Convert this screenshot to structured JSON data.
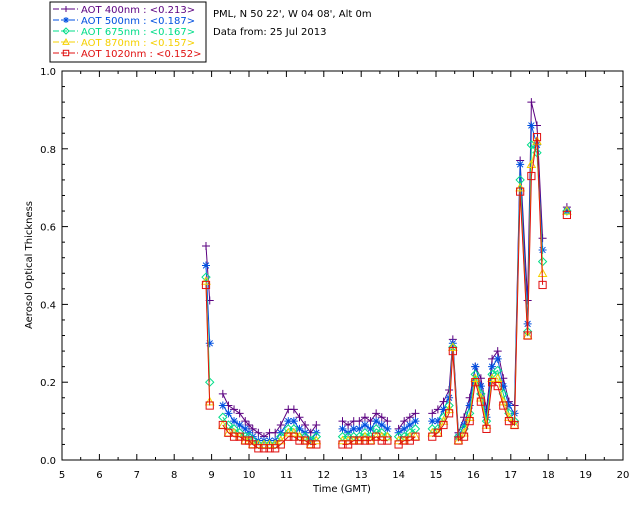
{
  "header": {
    "station": "PML, N 50 22', W 04 08', Alt 0m",
    "date_line": "Data from: 25 Jul 2013"
  },
  "chart_data": {
    "type": "line",
    "xlabel": "Time (GMT)",
    "ylabel": "Aerosol Optical Thickness",
    "xlim": [
      5,
      20
    ],
    "ylim": [
      0,
      1.0
    ],
    "x_ticks": [
      5,
      6,
      7,
      8,
      9,
      10,
      11,
      12,
      13,
      14,
      15,
      16,
      17,
      18,
      19,
      20
    ],
    "y_ticks": [
      "0.0",
      "0.2",
      "0.4",
      "0.6",
      "0.8",
      "1.0"
    ],
    "legend_placement": "top-left",
    "series": [
      {
        "name": "AOT  400nm : <0.213>",
        "label_prefix": "AOT  400nm : ",
        "label_value": "<0.213>",
        "color": "#5a0080",
        "marker": "plus",
        "values": [
          0.55,
          0.41,
          null,
          0.17,
          0.14,
          0.13,
          0.12,
          0.1,
          0.09,
          0.08,
          0.07,
          0.06,
          0.07,
          0.07,
          0.09,
          0.13,
          0.13,
          0.11,
          0.09,
          0.07,
          0.09,
          null,
          0.1,
          0.09,
          0.1,
          0.1,
          0.11,
          0.1,
          0.12,
          0.11,
          0.1,
          null,
          0.08,
          0.1,
          0.11,
          0.12,
          null,
          0.12,
          0.13,
          0.15,
          0.18,
          0.31,
          0.07,
          0.11,
          0.16,
          0.24,
          0.21,
          0.13,
          0.26,
          0.28,
          0.21,
          0.15,
          0.14,
          0.77,
          0.41,
          0.92,
          0.86,
          0.57,
          null,
          0.65
        ]
      },
      {
        "name": "AOT  500nm : <0.187>",
        "label_prefix": "AOT  500nm : ",
        "label_value": "<0.187>",
        "color": "#0050e0",
        "marker": "star",
        "values": [
          0.5,
          0.3,
          null,
          0.14,
          0.12,
          0.1,
          0.09,
          0.08,
          0.07,
          0.06,
          0.05,
          0.05,
          0.05,
          0.05,
          0.07,
          0.1,
          0.1,
          0.08,
          0.07,
          0.05,
          0.07,
          null,
          0.08,
          0.07,
          0.08,
          0.08,
          0.09,
          0.08,
          0.1,
          0.09,
          0.08,
          null,
          0.07,
          0.08,
          0.09,
          0.1,
          null,
          0.1,
          0.1,
          0.13,
          0.16,
          0.3,
          0.06,
          0.09,
          0.14,
          0.24,
          0.19,
          0.11,
          0.24,
          0.26,
          0.19,
          0.14,
          0.12,
          0.76,
          0.35,
          0.86,
          0.81,
          0.54,
          null,
          0.64
        ]
      },
      {
        "name": "AOT  675nm : <0.167>",
        "label_prefix": "AOT  675nm : ",
        "label_value": "<0.167>",
        "color": "#00dd88",
        "marker": "diamond",
        "values": [
          0.47,
          0.2,
          null,
          0.11,
          0.09,
          0.08,
          0.07,
          0.06,
          0.06,
          0.05,
          0.04,
          0.04,
          0.04,
          0.04,
          0.06,
          0.08,
          0.08,
          0.06,
          0.06,
          0.05,
          0.06,
          null,
          0.06,
          0.06,
          0.06,
          0.06,
          0.07,
          0.06,
          0.08,
          0.07,
          0.06,
          null,
          0.06,
          0.06,
          0.07,
          0.08,
          null,
          0.08,
          0.08,
          0.11,
          0.14,
          0.29,
          0.06,
          0.08,
          0.12,
          0.22,
          0.17,
          0.1,
          0.22,
          0.23,
          0.17,
          0.12,
          0.1,
          0.72,
          0.33,
          0.81,
          0.79,
          0.51,
          null,
          0.64
        ]
      },
      {
        "name": "AOT  870nm : <0.157>",
        "label_prefix": "AOT  870nm : ",
        "label_value": "<0.157>",
        "color": "#f5d000",
        "marker": "triangle",
        "values": [
          0.46,
          0.15,
          null,
          0.09,
          0.07,
          0.07,
          0.06,
          0.05,
          0.05,
          0.04,
          0.04,
          0.04,
          0.04,
          0.04,
          0.05,
          0.07,
          0.07,
          0.06,
          0.05,
          0.04,
          0.05,
          null,
          0.05,
          0.05,
          0.05,
          0.05,
          0.06,
          0.05,
          0.06,
          0.06,
          0.06,
          null,
          0.05,
          0.05,
          0.06,
          0.06,
          null,
          0.07,
          0.07,
          0.1,
          0.13,
          0.29,
          0.05,
          0.07,
          0.11,
          0.21,
          0.16,
          0.09,
          0.21,
          0.21,
          0.15,
          0.11,
          0.09,
          0.7,
          0.32,
          0.76,
          0.82,
          0.48,
          null,
          0.64
        ]
      },
      {
        "name": "AOT 1020nm : <0.152>",
        "label_prefix": "AOT 1020nm : ",
        "label_value": "<0.152>",
        "color": "#e01010",
        "marker": "square",
        "values": [
          0.45,
          0.14,
          null,
          0.09,
          0.07,
          0.06,
          0.06,
          0.05,
          0.05,
          0.04,
          0.03,
          0.03,
          0.03,
          0.03,
          0.04,
          0.06,
          0.06,
          0.05,
          0.05,
          0.04,
          0.04,
          null,
          0.04,
          0.04,
          0.05,
          0.05,
          0.05,
          0.05,
          0.06,
          0.05,
          0.05,
          null,
          0.04,
          0.05,
          0.05,
          0.06,
          null,
          0.06,
          0.07,
          0.09,
          0.12,
          0.28,
          0.05,
          0.06,
          0.1,
          0.2,
          0.15,
          0.08,
          0.2,
          0.19,
          0.14,
          0.1,
          0.09,
          0.69,
          0.32,
          0.73,
          0.83,
          0.45,
          null,
          0.63
        ]
      }
    ],
    "x": [
      8.85,
      8.95,
      9.15,
      9.3,
      9.45,
      9.6,
      9.75,
      9.9,
      10.0,
      10.1,
      10.25,
      10.4,
      10.55,
      10.7,
      10.85,
      11.05,
      11.2,
      11.35,
      11.5,
      11.65,
      11.8,
      12.2,
      12.5,
      12.65,
      12.8,
      12.95,
      13.1,
      13.25,
      13.4,
      13.55,
      13.7,
      13.85,
      14.0,
      14.15,
      14.3,
      14.45,
      14.7,
      14.9,
      15.05,
      15.2,
      15.35,
      15.45,
      15.6,
      15.75,
      15.9,
      16.05,
      16.2,
      16.35,
      16.5,
      16.65,
      16.8,
      16.95,
      17.1,
      17.25,
      17.45,
      17.55,
      17.7,
      17.85,
      18.2,
      18.5
    ]
  }
}
